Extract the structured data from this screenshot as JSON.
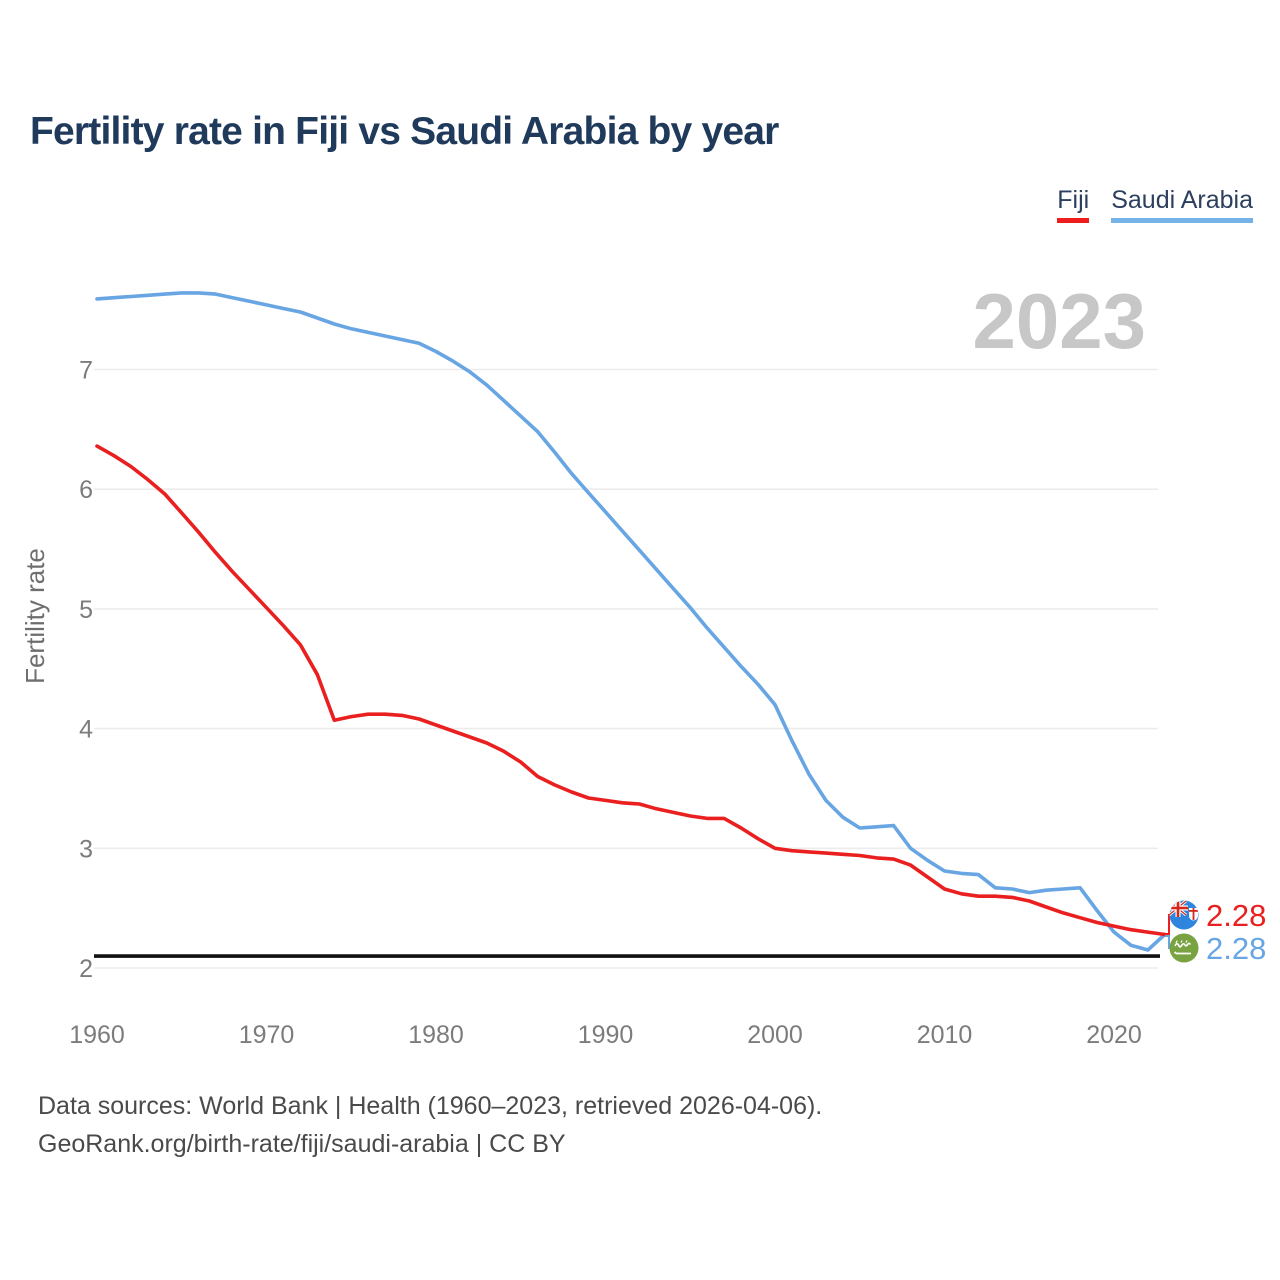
{
  "header": {
    "title": "Fertility rate in Fiji vs Saudi Arabia by year"
  },
  "legend": [
    {
      "label": "Fiji",
      "color": "#ee1c1c"
    },
    {
      "label": "Saudi Arabia",
      "color": "#74b2e8"
    }
  ],
  "watermark": "2023",
  "footer": {
    "line1": "Data sources: World Bank | Health (1960–2023, retrieved 2026-04-06).",
    "line2": "GeoRank.org/birth-rate/fiji/saudi-arabia | CC BY"
  },
  "theme": {
    "fiji_red": "#e9201f",
    "saudi_blue": "#68a5e3",
    "gridline": "#ececec",
    "reference_line": "#111111"
  },
  "chart_data": {
    "type": "line",
    "title": "Fertility rate in Fiji vs Saudi Arabia by year",
    "xlabel": "",
    "ylabel": "Fertility rate",
    "x_range": [
      1960,
      2023
    ],
    "ylim": [
      2,
      7.8
    ],
    "grid": true,
    "legend_position": "top-right",
    "yticks": [
      2,
      3,
      4,
      5,
      6,
      7
    ],
    "xticks": [
      1960,
      1970,
      1980,
      1990,
      2000,
      2010,
      2020
    ],
    "x": [
      1960,
      1961,
      1962,
      1963,
      1964,
      1965,
      1966,
      1967,
      1968,
      1969,
      1970,
      1971,
      1972,
      1973,
      1974,
      1975,
      1976,
      1977,
      1978,
      1979,
      1980,
      1981,
      1982,
      1983,
      1984,
      1985,
      1986,
      1987,
      1988,
      1989,
      1990,
      1991,
      1992,
      1993,
      1994,
      1995,
      1996,
      1997,
      1998,
      1999,
      2000,
      2001,
      2002,
      2003,
      2004,
      2005,
      2006,
      2007,
      2008,
      2009,
      2010,
      2011,
      2012,
      2013,
      2014,
      2015,
      2016,
      2017,
      2018,
      2019,
      2020,
      2021,
      2022,
      2023
    ],
    "series": [
      {
        "name": "Fiji",
        "color": "#e9201f",
        "values": [
          6.36,
          6.28,
          6.19,
          6.08,
          5.96,
          5.8,
          5.64,
          5.47,
          5.31,
          5.16,
          5.01,
          4.86,
          4.7,
          4.45,
          4.07,
          4.1,
          4.12,
          4.12,
          4.11,
          4.08,
          4.03,
          3.98,
          3.93,
          3.88,
          3.81,
          3.72,
          3.6,
          3.53,
          3.47,
          3.42,
          3.4,
          3.38,
          3.37,
          3.33,
          3.3,
          3.27,
          3.25,
          3.25,
          3.17,
          3.08,
          3.0,
          2.98,
          2.97,
          2.96,
          2.95,
          2.94,
          2.92,
          2.91,
          2.86,
          2.76,
          2.66,
          2.62,
          2.6,
          2.6,
          2.59,
          2.56,
          2.51,
          2.46,
          2.42,
          2.38,
          2.35,
          2.32,
          2.3,
          2.28
        ]
      },
      {
        "name": "Saudi Arabia",
        "color": "#68a5e3",
        "values": [
          7.59,
          7.6,
          7.61,
          7.62,
          7.63,
          7.64,
          7.64,
          7.63,
          7.6,
          7.57,
          7.54,
          7.51,
          7.48,
          7.43,
          7.38,
          7.34,
          7.31,
          7.28,
          7.25,
          7.22,
          7.15,
          7.07,
          6.98,
          6.87,
          6.74,
          6.61,
          6.48,
          6.31,
          6.13,
          5.97,
          5.81,
          5.65,
          5.49,
          5.33,
          5.17,
          5.01,
          4.84,
          4.68,
          4.52,
          4.37,
          4.2,
          3.9,
          3.62,
          3.4,
          3.26,
          3.17,
          3.18,
          3.19,
          3.0,
          2.9,
          2.81,
          2.79,
          2.78,
          2.67,
          2.66,
          2.63,
          2.65,
          2.66,
          2.67,
          2.48,
          2.3,
          2.19,
          2.15,
          2.28
        ]
      }
    ],
    "annotations": {
      "watermark": "2023",
      "reference_line": 2.1
    },
    "end_labels": {
      "fiji": "2.28",
      "saudi": "2.28"
    }
  }
}
